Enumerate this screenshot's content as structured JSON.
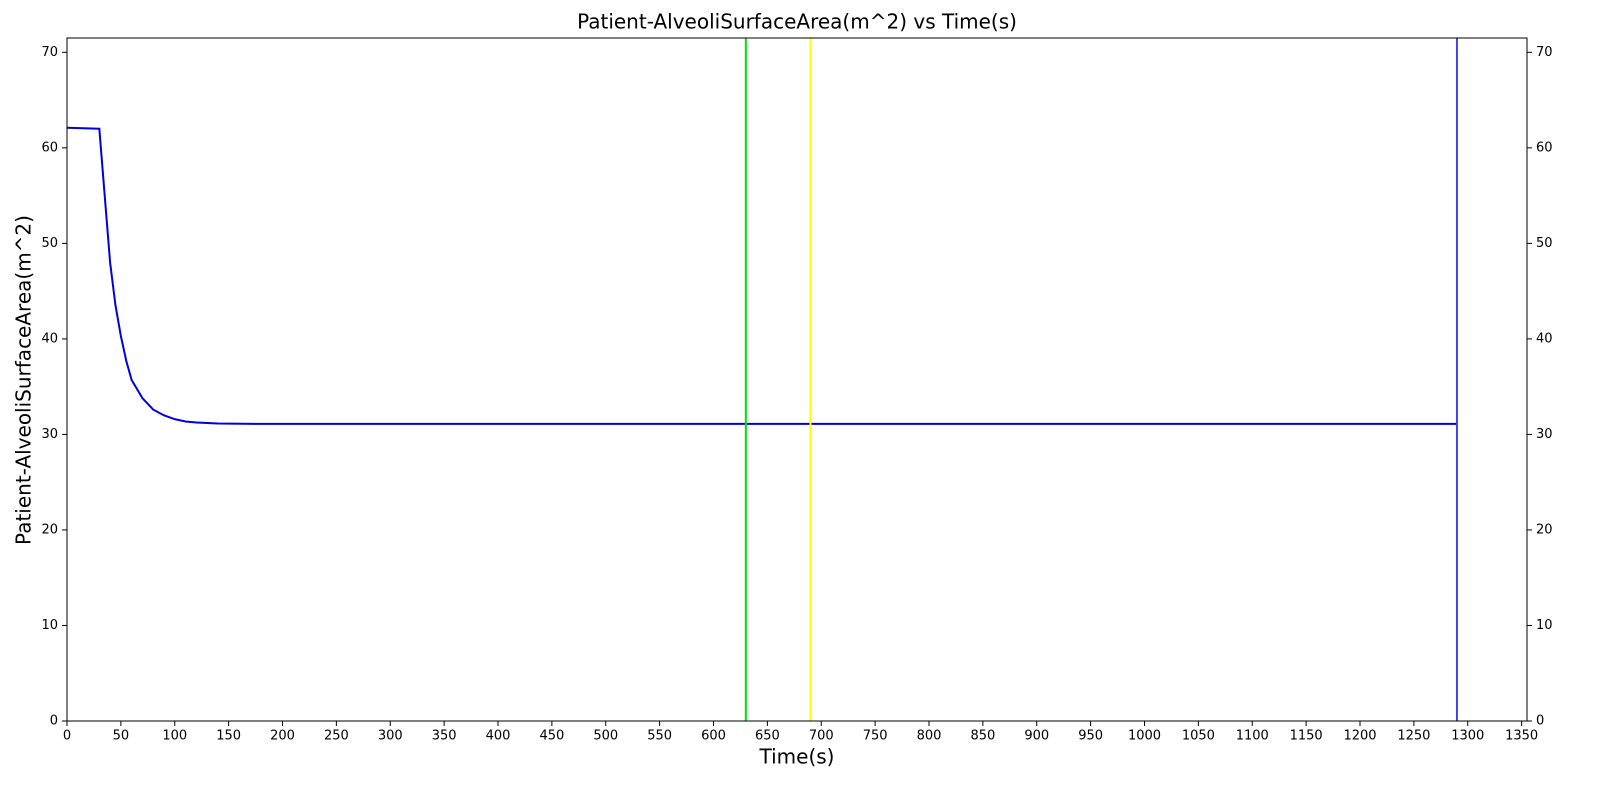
{
  "chart_data": {
    "type": "line",
    "title": "Patient-AlveoliSurfaceArea(m^2) vs Time(s)",
    "x_label": "Time(s)",
    "y_label": "Patient-AlveoliSurfaceArea(m^2)",
    "x": [
      0,
      30,
      35,
      40,
      45,
      50,
      55,
      60,
      70,
      80,
      90,
      100,
      110,
      120,
      140,
      180,
      1290
    ],
    "series": [
      {
        "name": "Patient-AlveoliSurfaceArea(m^2)",
        "color": "#0000dd",
        "values": [
          62.1,
          62.0,
          55,
          48,
          43.5,
          40.3,
          37.7,
          35.7,
          33.8,
          32.6,
          32.0,
          31.6,
          31.35,
          31.25,
          31.15,
          31.1,
          31.1
        ]
      }
    ],
    "vlines": [
      {
        "x": 630,
        "color": "#00e000"
      },
      {
        "x": 690,
        "color": "#ffff00"
      },
      {
        "x": 1290,
        "color": "#4444ee"
      }
    ],
    "xlim": [
      0,
      1355
    ],
    "xticks": [
      0,
      50,
      100,
      150,
      200,
      250,
      300,
      350,
      400,
      450,
      500,
      550,
      600,
      650,
      700,
      750,
      800,
      850,
      900,
      950,
      1000,
      1050,
      1100,
      1150,
      1200,
      1250,
      1300,
      1350
    ],
    "ylim": [
      0,
      71.5
    ],
    "yticks": [
      0,
      10,
      20,
      30,
      40,
      50,
      60,
      70
    ],
    "y2lim": [
      0,
      71.5
    ],
    "y2ticks": [
      0,
      10,
      20,
      30,
      40,
      50,
      60,
      70
    ]
  }
}
